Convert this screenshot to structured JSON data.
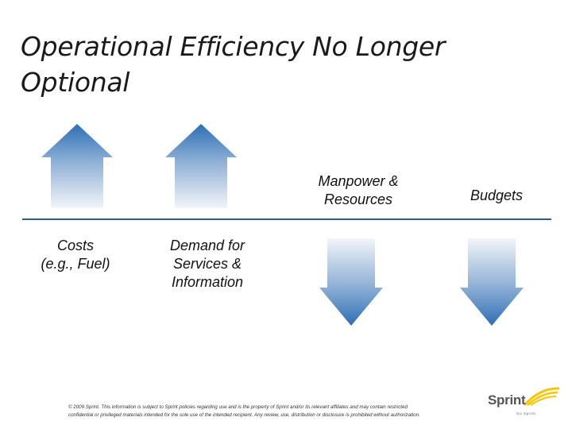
{
  "slide": {
    "title_line1": "Operational Efficiency No Longer",
    "title_line2": "Optional"
  },
  "items": [
    {
      "label_line1": "Costs",
      "label_line2": "(e.g., Fuel)",
      "direction": "up"
    },
    {
      "label_line1": "Demand for",
      "label_line2": "Services &",
      "label_line3": "Information",
      "direction": "up"
    },
    {
      "label_line1": "Manpower &",
      "label_line2": "Resources",
      "direction": "down"
    },
    {
      "label_line1": "Budgets",
      "direction": "down"
    }
  ],
  "footer": {
    "line1": "© 2009 Sprint. This information is subject to Sprint policies regarding use and is the property of Sprint and/or its relevant affiliates and may contain restricted",
    "line2": "confidential or privileged materials intended for the sole use of the intended recipient. Any review, use, distribution or disclosure is prohibited without authorization."
  },
  "logo": {
    "name": "Sprint",
    "tagline": "Go Sprint"
  },
  "colors": {
    "arrow_dark": "#2d6fb4",
    "arrow_light": "#f2f5f9",
    "divider": "#2f5e8c",
    "logo_yellow": "#f7c600"
  }
}
